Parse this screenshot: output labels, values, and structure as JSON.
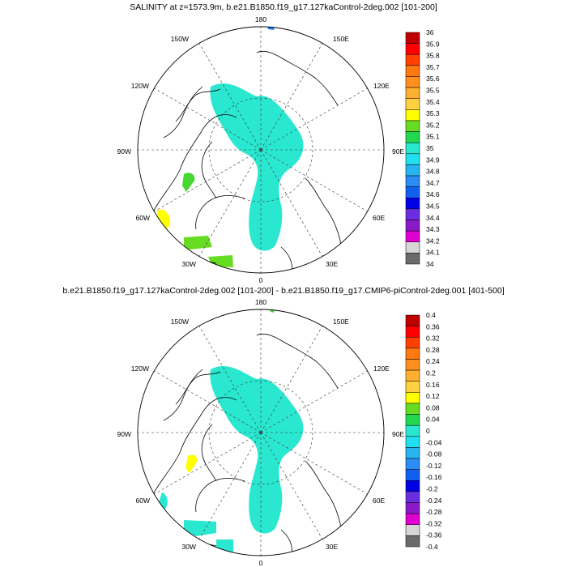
{
  "chart_data": [
    {
      "type": "heatmap",
      "projection": "polar-stereographic (North Pole)",
      "title": "SALINITY at z=1573.9m, b.e21.B1850.f19_g17.127kaControl-2deg.002 [101-200]",
      "longitude_labels": [
        "180",
        "150E",
        "120E",
        "90E",
        "60E",
        "30E",
        "0",
        "30W",
        "60W",
        "90W",
        "120W",
        "150W"
      ],
      "grid": "dashed meridians every 30°, dashed latitude circle",
      "colorbar": {
        "position": "right",
        "levels": [
          "34",
          "34.1",
          "34.2",
          "34.3",
          "34.4",
          "34.5",
          "34.6",
          "34.7",
          "34.8",
          "34.9",
          "35",
          "35.1",
          "35.2",
          "35.3",
          "35.4",
          "35.5",
          "35.6",
          "35.7",
          "35.8",
          "35.9",
          "36"
        ],
        "colors": [
          "#6b6b6b",
          "#d6d6d6",
          "#e000d0",
          "#8a1ac8",
          "#6a2ee0",
          "#0000e6",
          "#1060f0",
          "#2a8cf4",
          "#28b4f0",
          "#20e0f0",
          "#2ae8d0",
          "#22d850",
          "#66dd22",
          "#ffff00",
          "#ffd040",
          "#ffb030",
          "#ff9020",
          "#ff7810",
          "#ff4000",
          "#ff0000",
          "#c00000"
        ]
      }
    },
    {
      "type": "heatmap",
      "projection": "polar-stereographic (North Pole)",
      "title": "b.e21.B1850.f19_g17.127kaControl-2deg.002 [101-200] - b.e21.B1850.f19_g17.CMIP6-piControl-2deg.001 [401-500]",
      "longitude_labels": [
        "180",
        "150E",
        "120E",
        "90E",
        "60E",
        "30E",
        "0",
        "30W",
        "60W",
        "90W",
        "120W",
        "150W"
      ],
      "grid": "dashed meridians every 30°, dashed latitude circle",
      "colorbar": {
        "position": "right",
        "levels": [
          "-0.4",
          "-0.36",
          "-0.32",
          "-0.28",
          "-0.24",
          "-0.2",
          "-0.16",
          "-0.12",
          "-0.08",
          "-0.04",
          "0",
          "0.04",
          "0.08",
          "0.12",
          "0.16",
          "0.2",
          "0.24",
          "0.28",
          "0.32",
          "0.36",
          "0.4"
        ],
        "colors": [
          "#6b6b6b",
          "#d6d6d6",
          "#e000d0",
          "#8a1ac8",
          "#6a2ee0",
          "#0000e6",
          "#1060f0",
          "#2a8cf4",
          "#28b4f0",
          "#20e0f0",
          "#2ae8d0",
          "#22d850",
          "#66dd22",
          "#ffff00",
          "#ffd040",
          "#ffb030",
          "#ff9020",
          "#ff7810",
          "#ff4000",
          "#ff0000",
          "#c00000"
        ]
      }
    }
  ]
}
